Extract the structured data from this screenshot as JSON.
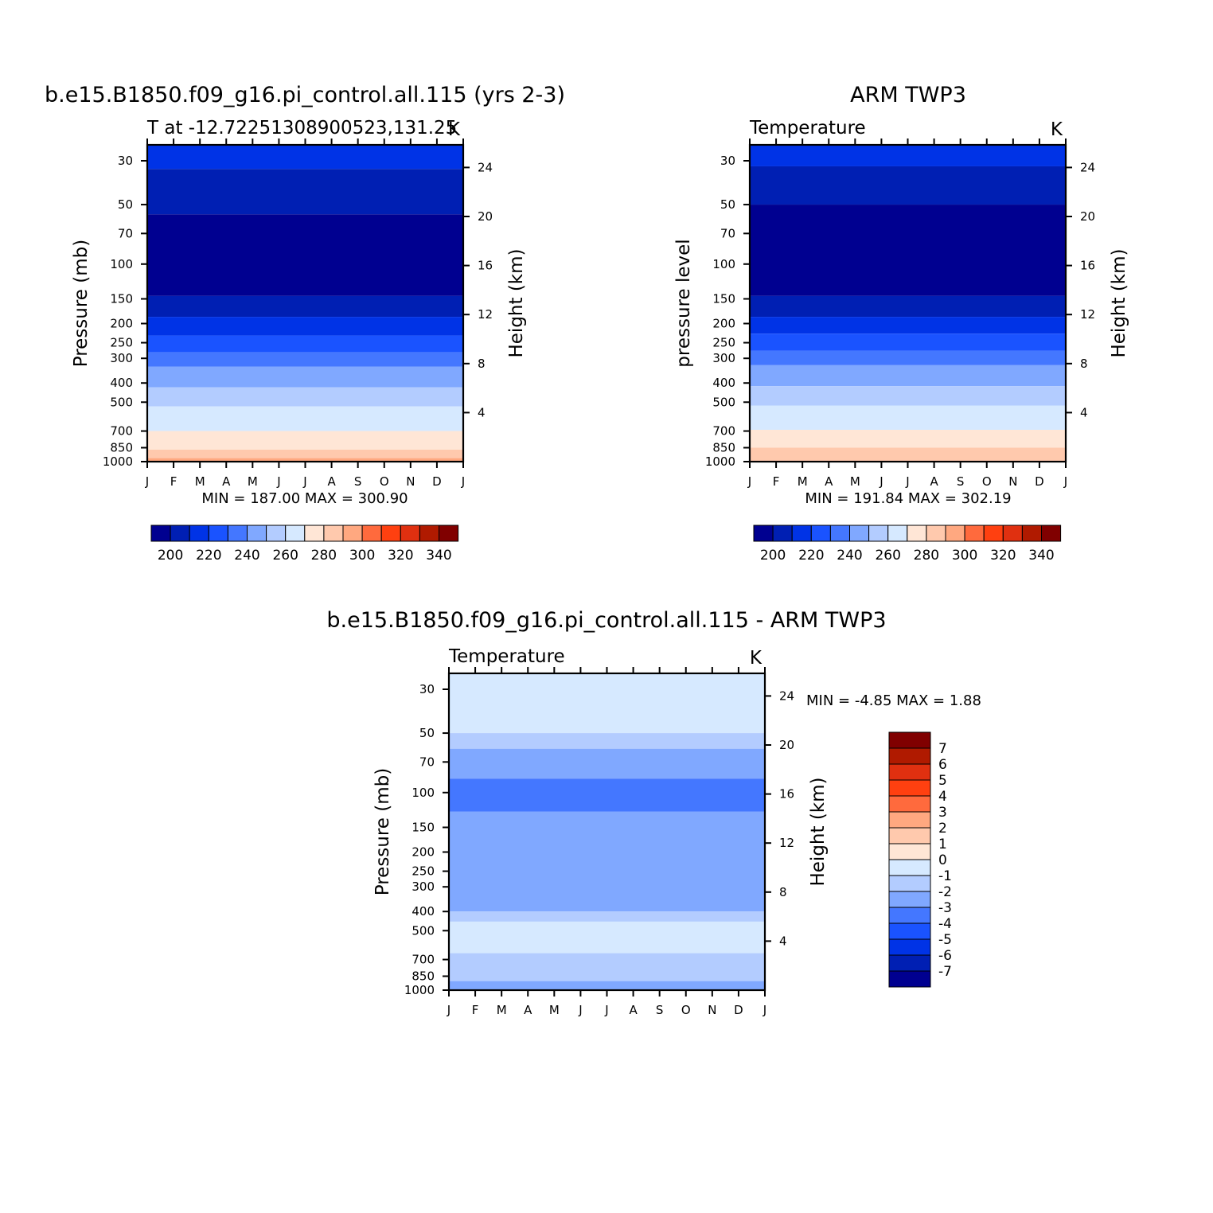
{
  "chart_data": [
    {
      "type": "heatmap",
      "panel": "model",
      "title": "b.e15.B1850.f09_g16.pi_control.all.115 (yrs 2-3)",
      "left_label": "T at -12.72251308900523,131.25",
      "right_label": "K",
      "ylabel": "Pressure (mb)",
      "ylabel_right": "Height (km)",
      "x_ticks": [
        "J",
        "F",
        "M",
        "A",
        "M",
        "J",
        "J",
        "A",
        "S",
        "O",
        "N",
        "D",
        "J"
      ],
      "y_ticks": [
        30,
        50,
        70,
        100,
        150,
        200,
        250,
        300,
        400,
        500,
        700,
        850,
        1000
      ],
      "height_ticks": [
        24,
        20,
        16,
        12,
        8,
        4
      ],
      "min_max": "MIN = 187.00 MAX = 300.90",
      "colorbar_labels": [
        "200",
        "220",
        "240",
        "260",
        "280",
        "300",
        "320",
        "340"
      ],
      "levels": [
        200,
        210,
        220,
        230,
        240,
        250,
        260,
        270,
        280,
        290,
        300,
        310,
        320,
        330,
        340
      ],
      "band_pressures": [
        30,
        33,
        56,
        145,
        185,
        230,
        280,
        330,
        420,
        525,
        700,
        870,
        960,
        1000
      ],
      "band_colors": [
        "#0033e6",
        "#001fb3",
        "#000090",
        "#001fb3",
        "#0033e6",
        "#1a53ff",
        "#4477ff",
        "#80a8ff",
        "#b3ccff",
        "#d6e9ff",
        "#ffe6d6",
        "#ffc9ad",
        "#ffa880"
      ]
    },
    {
      "type": "heatmap",
      "panel": "obs",
      "title": "ARM TWP3",
      "left_label": "Temperature",
      "right_label": "K",
      "ylabel": "pressure level",
      "ylabel_right": "Height (km)",
      "x_ticks": [
        "J",
        "F",
        "M",
        "A",
        "M",
        "J",
        "J",
        "A",
        "S",
        "O",
        "N",
        "D",
        "J"
      ],
      "y_ticks": [
        30,
        50,
        70,
        100,
        150,
        200,
        250,
        300,
        400,
        500,
        700,
        850,
        1000
      ],
      "height_ticks": [
        24,
        20,
        16,
        12,
        8,
        4
      ],
      "min_max": "MIN = 191.84 MAX = 302.19",
      "colorbar_labels": [
        "200",
        "220",
        "240",
        "260",
        "280",
        "300",
        "320",
        "340"
      ],
      "levels": [
        200,
        210,
        220,
        230,
        240,
        250,
        260,
        270,
        280,
        290,
        300,
        310,
        320,
        330,
        340
      ],
      "band_pressures": [
        30,
        32,
        50,
        145,
        185,
        225,
        275,
        325,
        415,
        520,
        690,
        850,
        1000
      ],
      "band_colors": [
        "#0033e6",
        "#001fb3",
        "#000090",
        "#001fb3",
        "#0033e6",
        "#1a53ff",
        "#4477ff",
        "#80a8ff",
        "#b3ccff",
        "#d6e9ff",
        "#ffe6d6",
        "#ffc9ad",
        "#ffa880"
      ]
    },
    {
      "type": "heatmap",
      "panel": "diff",
      "title": "b.e15.B1850.f09_g16.pi_control.all.115 - ARM TWP3",
      "left_label": "Temperature",
      "right_label": "K",
      "ylabel": "Pressure (mb)",
      "ylabel_right": "Height (km)",
      "x_ticks": [
        "J",
        "F",
        "M",
        "A",
        "M",
        "J",
        "J",
        "A",
        "S",
        "O",
        "N",
        "D",
        "J"
      ],
      "y_ticks": [
        30,
        50,
        70,
        100,
        150,
        200,
        250,
        300,
        400,
        500,
        700,
        850,
        1000
      ],
      "height_ticks": [
        24,
        20,
        16,
        12,
        8,
        4
      ],
      "min_max": "MIN =   -4.85 MAX =    1.88",
      "colorbar_labels": [
        "7",
        "6",
        "5",
        "4",
        "3",
        "2",
        "1",
        "0",
        "-1",
        "-2",
        "-3",
        "-4",
        "-5",
        "-6",
        "-7"
      ],
      "levels": [
        7,
        6,
        5,
        4,
        3,
        2,
        1,
        0,
        -1,
        -2,
        -3,
        -4,
        -5,
        -6,
        -7
      ],
      "band_pressures": [
        30,
        50,
        60,
        85,
        125,
        400,
        450,
        650,
        900,
        1000
      ],
      "band_colors": [
        "#d6e9ff",
        "#b3ccff",
        "#80a8ff",
        "#4477ff",
        "#80a8ff",
        "#b3ccff",
        "#d6e9ff",
        "#b3ccff",
        "#80a8ff"
      ]
    }
  ],
  "colors": {
    "warm_scale": [
      "#000090",
      "#001fb3",
      "#0033e6",
      "#1a53ff",
      "#4477ff",
      "#80a8ff",
      "#b3ccff",
      "#d6e9ff",
      "#ffe6d6",
      "#ffc9ad",
      "#ffa880",
      "#ff6a3d",
      "#ff4010",
      "#e03010",
      "#b01a00",
      "#800000"
    ]
  }
}
